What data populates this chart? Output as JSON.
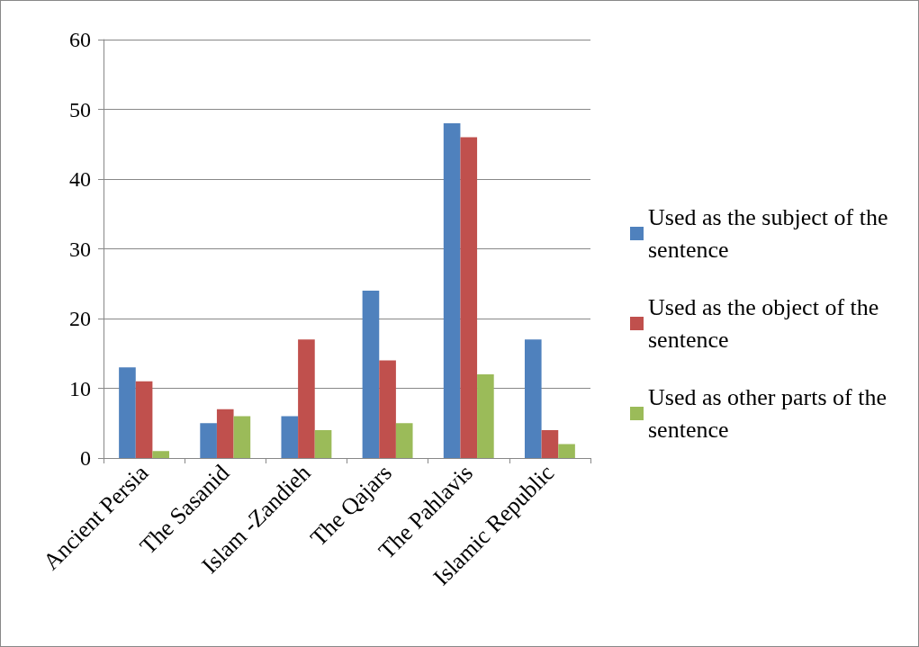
{
  "chart_data": {
    "type": "bar",
    "categories": [
      "Ancient Persia",
      "The Sasanid",
      "Islam -Zandieh",
      "The Qajars",
      "The Pahlavis",
      "Islamic Republic"
    ],
    "series": [
      {
        "name": "Used as the subject of the sentence",
        "color": "#4f81bd",
        "values": [
          13,
          5,
          6,
          24,
          48,
          17
        ]
      },
      {
        "name": "Used as the object of the sentence",
        "color": "#c0504d",
        "values": [
          11,
          7,
          17,
          14,
          46,
          4
        ]
      },
      {
        "name": "Used as other parts of the sentence",
        "color": "#9bbb59",
        "values": [
          1,
          6,
          4,
          5,
          12,
          2
        ]
      }
    ],
    "ylim": [
      0,
      60
    ],
    "yticks": [
      0,
      10,
      20,
      30,
      40,
      50,
      60
    ],
    "grid": "y",
    "legend": "right"
  }
}
